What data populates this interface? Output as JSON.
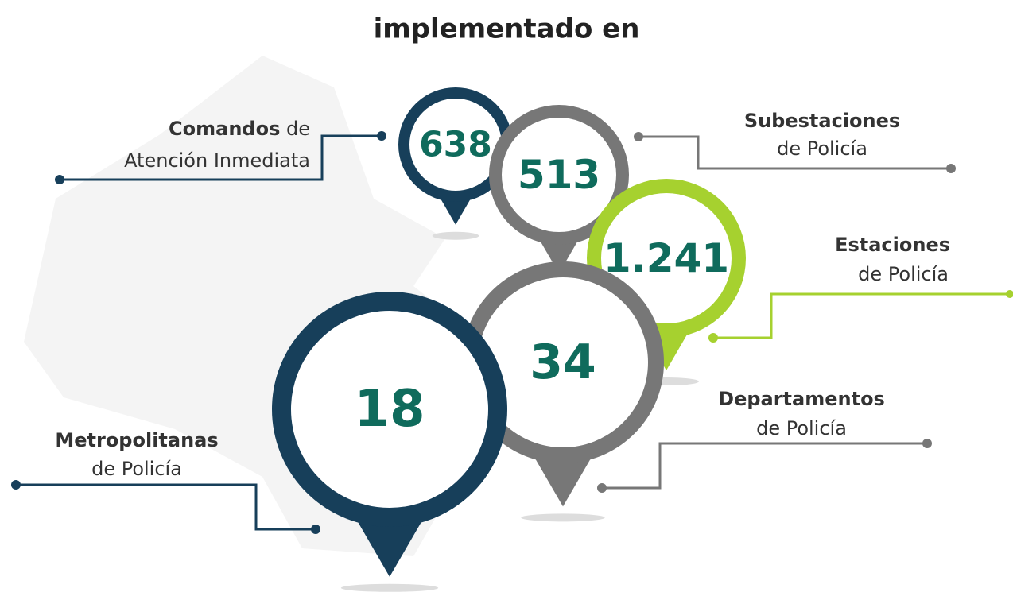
{
  "header": {
    "title": "implementado en"
  },
  "items": [
    {
      "value": "638",
      "label_bold": "Comandos",
      "label_after": "de",
      "label_line2": "Atención Inmediata"
    },
    {
      "value": "513",
      "label_bold": "Subestaciones",
      "label_line2": "de Policía"
    },
    {
      "value": "1.241",
      "label_bold": "Estaciones",
      "label_line2": "de Policía"
    },
    {
      "value": "34",
      "label_bold": "Departamentos",
      "label_line2": "de Policía"
    },
    {
      "value": "18",
      "label_bold": "Metropolitanas",
      "label_line2": "de Policía"
    }
  ]
}
